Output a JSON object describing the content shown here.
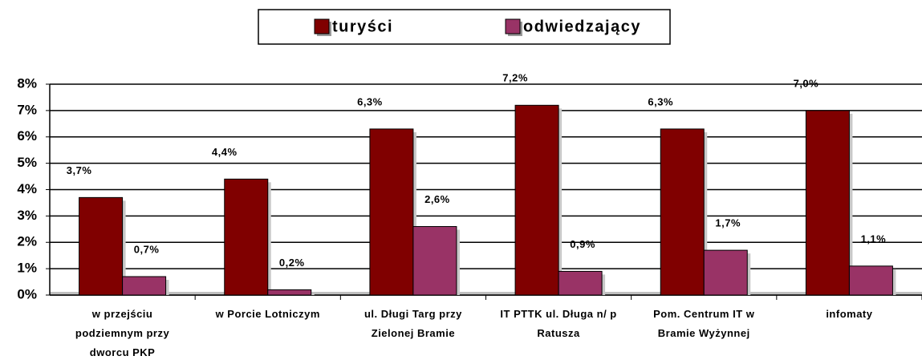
{
  "chart_data": {
    "type": "bar",
    "categories": [
      "w przejściu podziemnym przy dworcu PKP",
      "w Porcie Lotniczym",
      "ul. Długi Targ przy Zielonej Bramie",
      "IT PTTK ul. Długa n/ p Ratusza",
      "Pom. Centrum IT w Bramie Wyżynnej",
      "infomaty"
    ],
    "series": [
      {
        "name": "turyści",
        "color": "#800000",
        "values": [
          3.7,
          4.4,
          6.3,
          7.2,
          6.3,
          7.0
        ],
        "value_labels": [
          "3,7%",
          "4,4%",
          "6,3%",
          "7,2%",
          "6,3%",
          "7,0%"
        ]
      },
      {
        "name": "odwiedzający",
        "color": "#993366",
        "values": [
          0.7,
          0.2,
          2.6,
          0.9,
          1.7,
          1.1
        ],
        "value_labels": [
          "0,7%",
          "0,2%",
          "2,6%",
          "0,9%",
          "1,7%",
          "1,1%"
        ]
      }
    ],
    "ylim": [
      0,
      8
    ],
    "yticks": [
      {
        "value": 0,
        "label": "0%"
      },
      {
        "value": 1,
        "label": "1%"
      },
      {
        "value": 2,
        "label": "2%"
      },
      {
        "value": 3,
        "label": "3%"
      },
      {
        "value": 4,
        "label": "4%"
      },
      {
        "value": 5,
        "label": "5%"
      },
      {
        "value": 6,
        "label": "6%"
      },
      {
        "value": 7,
        "label": "7%"
      },
      {
        "value": 8,
        "label": "8%"
      }
    ],
    "grid": true,
    "legend": "top"
  }
}
